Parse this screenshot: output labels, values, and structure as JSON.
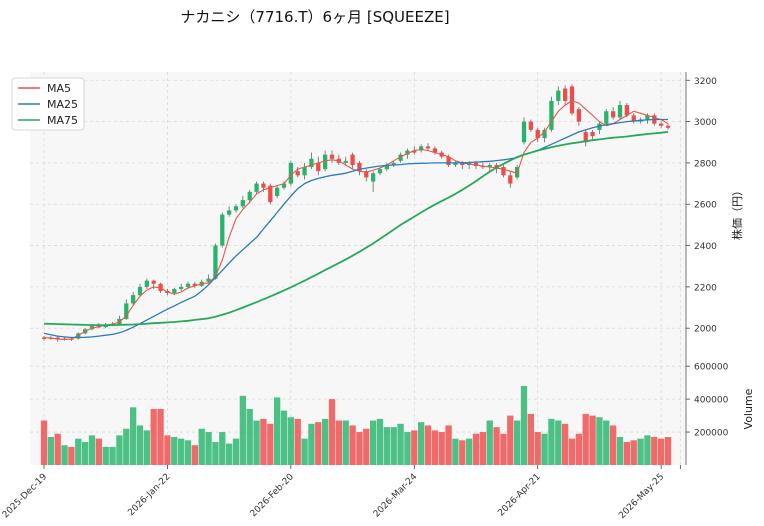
{
  "chart_data": {
    "type": "candlestick",
    "title": "ナカニシ（7716.T）6ヶ月 [SQUEEZE]",
    "price_axis": {
      "label": "株価（円）",
      "ticks": [
        2000,
        2200,
        2400,
        2600,
        2800,
        3000,
        3200
      ],
      "ylim": [
        1880,
        3240
      ]
    },
    "volume_axis": {
      "label": "Volume",
      "ticks": [
        200000,
        400000,
        600000
      ],
      "tick_labels": [
        "200000",
        "400000",
        "600000"
      ],
      "ylim": [
        0,
        680000
      ]
    },
    "x_ticks": [
      "2025-Dec-19",
      "2026-Jan-22",
      "2026-Feb-20",
      "2026-Mar-24",
      "2026-Apr-21",
      "2026-May-25"
    ],
    "grid": true,
    "legend": {
      "position": "top-left",
      "entries": [
        "MA5",
        "MA25",
        "MA75"
      ]
    },
    "colors": {
      "up": "#26b36b",
      "down": "#ef4b4b",
      "ma5": "#e8574a",
      "ma25": "#2b7bbd",
      "ma75": "#27a85a"
    },
    "series": [
      {
        "name": "MA5",
        "values": [
          1955,
          1952,
          1948,
          1946,
          1948,
          1965,
          1985,
          2000,
          2008,
          2015,
          2020,
          2030,
          2060,
          2110,
          2155,
          2185,
          2200,
          2195,
          2175,
          2165,
          2175,
          2195,
          2205,
          2215,
          2220,
          2250,
          2330,
          2440,
          2530,
          2575,
          2610,
          2650,
          2670,
          2680,
          2690,
          2700,
          2740,
          2770,
          2780,
          2790,
          2800,
          2810,
          2815,
          2810,
          2790,
          2770,
          2760,
          2755,
          2765,
          2775,
          2790,
          2810,
          2830,
          2845,
          2860,
          2865,
          2860,
          2850,
          2840,
          2830,
          2810,
          2800,
          2795,
          2790,
          2785,
          2780,
          2775,
          2770,
          2760,
          2750,
          2850,
          2900,
          2920,
          2950,
          3000,
          3050,
          3080,
          3100,
          3090,
          3060,
          3030,
          3000,
          2980,
          2990,
          3010,
          3030,
          3050,
          3040,
          3030,
          3020,
          3010,
          2990
        ]
      },
      {
        "name": "MA25",
        "values": [
          1975,
          1968,
          1962,
          1958,
          1955,
          1955,
          1956,
          1958,
          1962,
          1966,
          1970,
          1978,
          1990,
          2005,
          2022,
          2040,
          2057,
          2075,
          2092,
          2108,
          2125,
          2140,
          2155,
          2180,
          2210,
          2245,
          2280,
          2315,
          2350,
          2380,
          2410,
          2440,
          2480,
          2520,
          2560,
          2600,
          2640,
          2675,
          2700,
          2715,
          2725,
          2733,
          2740,
          2745,
          2750,
          2760,
          2770,
          2775,
          2780,
          2785,
          2788,
          2790,
          2792,
          2795,
          2797,
          2798,
          2799,
          2800,
          2800,
          2800,
          2800,
          2801,
          2802,
          2804,
          2806,
          2808,
          2811,
          2815,
          2820,
          2825,
          2840,
          2850,
          2860,
          2875,
          2890,
          2905,
          2920,
          2935,
          2950,
          2960,
          2970,
          2978,
          2985,
          2990,
          2995,
          3000,
          3003,
          3006,
          3008,
          3010,
          3010,
          3010
        ]
      },
      {
        "name": "MA75",
        "values": [
          2022,
          2021,
          2020,
          2019,
          2018,
          2017,
          2016,
          2015,
          2015,
          2015,
          2015,
          2016,
          2017,
          2018,
          2020,
          2022,
          2024,
          2026,
          2028,
          2030,
          2033,
          2036,
          2040,
          2044,
          2048,
          2055,
          2065,
          2075,
          2087,
          2100,
          2113,
          2126,
          2140,
          2154,
          2168,
          2183,
          2198,
          2214,
          2230,
          2247,
          2264,
          2281,
          2298,
          2315,
          2333,
          2351,
          2370,
          2390,
          2410,
          2432,
          2455,
          2477,
          2500,
          2520,
          2540,
          2560,
          2580,
          2598,
          2615,
          2632,
          2650,
          2670,
          2690,
          2712,
          2735,
          2757,
          2778,
          2795,
          2812,
          2828,
          2840,
          2850,
          2860,
          2868,
          2876,
          2883,
          2889,
          2895,
          2900,
          2905,
          2910,
          2914,
          2918,
          2922,
          2925,
          2928,
          2932,
          2936,
          2940,
          2943,
          2946,
          2950
        ]
      }
    ],
    "candles": [
      {
        "o": 1955,
        "c": 1948,
        "h": 1962,
        "l": 1940
      },
      {
        "o": 1948,
        "c": 1955,
        "h": 1962,
        "l": 1942
      },
      {
        "o": 1955,
        "c": 1945,
        "h": 1960,
        "l": 1935
      },
      {
        "o": 1945,
        "c": 1950,
        "h": 1958,
        "l": 1940
      },
      {
        "o": 1950,
        "c": 1945,
        "h": 1956,
        "l": 1938
      },
      {
        "o": 1950,
        "c": 1975,
        "h": 1980,
        "l": 1945
      },
      {
        "o": 1975,
        "c": 1995,
        "h": 2000,
        "l": 1970
      },
      {
        "o": 1995,
        "c": 2010,
        "h": 2020,
        "l": 1990
      },
      {
        "o": 2010,
        "c": 2005,
        "h": 2025,
        "l": 2000
      },
      {
        "o": 2005,
        "c": 2015,
        "h": 2025,
        "l": 2000
      },
      {
        "o": 2015,
        "c": 2020,
        "h": 2030,
        "l": 2010
      },
      {
        "o": 2020,
        "c": 2045,
        "h": 2060,
        "l": 2015
      },
      {
        "o": 2045,
        "c": 2120,
        "h": 2140,
        "l": 2040
      },
      {
        "o": 2120,
        "c": 2160,
        "h": 2175,
        "l": 2110
      },
      {
        "o": 2160,
        "c": 2200,
        "h": 2215,
        "l": 2150
      },
      {
        "o": 2200,
        "c": 2230,
        "h": 2240,
        "l": 2190
      },
      {
        "o": 2230,
        "c": 2215,
        "h": 2235,
        "l": 2190
      },
      {
        "o": 2215,
        "c": 2180,
        "h": 2220,
        "l": 2170
      },
      {
        "o": 2180,
        "c": 2170,
        "h": 2190,
        "l": 2160
      },
      {
        "o": 2170,
        "c": 2190,
        "h": 2195,
        "l": 2160
      },
      {
        "o": 2190,
        "c": 2200,
        "h": 2215,
        "l": 2180
      },
      {
        "o": 2200,
        "c": 2215,
        "h": 2225,
        "l": 2190
      },
      {
        "o": 2215,
        "c": 2205,
        "h": 2225,
        "l": 2195
      },
      {
        "o": 2205,
        "c": 2225,
        "h": 2235,
        "l": 2200
      },
      {
        "o": 2225,
        "c": 2240,
        "h": 2260,
        "l": 2215
      },
      {
        "o": 2240,
        "c": 2400,
        "h": 2410,
        "l": 2235
      },
      {
        "o": 2400,
        "c": 2550,
        "h": 2560,
        "l": 2390
      },
      {
        "o": 2550,
        "c": 2570,
        "h": 2590,
        "l": 2540
      },
      {
        "o": 2570,
        "c": 2590,
        "h": 2600,
        "l": 2560
      },
      {
        "o": 2590,
        "c": 2620,
        "h": 2640,
        "l": 2580
      },
      {
        "o": 2620,
        "c": 2660,
        "h": 2670,
        "l": 2610
      },
      {
        "o": 2660,
        "c": 2700,
        "h": 2710,
        "l": 2650
      },
      {
        "o": 2700,
        "c": 2680,
        "h": 2710,
        "l": 2660
      },
      {
        "o": 2690,
        "c": 2610,
        "h": 2700,
        "l": 2600
      },
      {
        "o": 2640,
        "c": 2680,
        "h": 2690,
        "l": 2630
      },
      {
        "o": 2680,
        "c": 2700,
        "h": 2710,
        "l": 2670
      },
      {
        "o": 2700,
        "c": 2800,
        "h": 2810,
        "l": 2690
      },
      {
        "o": 2760,
        "c": 2740,
        "h": 2780,
        "l": 2730
      },
      {
        "o": 2740,
        "c": 2780,
        "h": 2800,
        "l": 2720
      },
      {
        "o": 2780,
        "c": 2820,
        "h": 2850,
        "l": 2770
      },
      {
        "o": 2800,
        "c": 2760,
        "h": 2830,
        "l": 2740
      },
      {
        "o": 2770,
        "c": 2840,
        "h": 2860,
        "l": 2760
      },
      {
        "o": 2840,
        "c": 2820,
        "h": 2860,
        "l": 2800
      },
      {
        "o": 2820,
        "c": 2800,
        "h": 2840,
        "l": 2790
      },
      {
        "o": 2800,
        "c": 2810,
        "h": 2830,
        "l": 2790
      },
      {
        "o": 2840,
        "c": 2790,
        "h": 2850,
        "l": 2770
      },
      {
        "o": 2800,
        "c": 2760,
        "h": 2810,
        "l": 2740
      },
      {
        "o": 2760,
        "c": 2730,
        "h": 2770,
        "l": 2710
      },
      {
        "o": 2710,
        "c": 2750,
        "h": 2760,
        "l": 2660
      },
      {
        "o": 2750,
        "c": 2770,
        "h": 2780,
        "l": 2740
      },
      {
        "o": 2770,
        "c": 2790,
        "h": 2800,
        "l": 2760
      },
      {
        "o": 2790,
        "c": 2800,
        "h": 2810,
        "l": 2780
      },
      {
        "o": 2810,
        "c": 2840,
        "h": 2850,
        "l": 2800
      },
      {
        "o": 2840,
        "c": 2860,
        "h": 2870,
        "l": 2820
      },
      {
        "o": 2860,
        "c": 2850,
        "h": 2880,
        "l": 2840
      },
      {
        "o": 2860,
        "c": 2880,
        "h": 2890,
        "l": 2850
      },
      {
        "o": 2880,
        "c": 2870,
        "h": 2895,
        "l": 2860
      },
      {
        "o": 2870,
        "c": 2850,
        "h": 2880,
        "l": 2840
      },
      {
        "o": 2850,
        "c": 2830,
        "h": 2860,
        "l": 2820
      },
      {
        "o": 2830,
        "c": 2790,
        "h": 2840,
        "l": 2780
      },
      {
        "o": 2790,
        "c": 2800,
        "h": 2810,
        "l": 2780
      },
      {
        "o": 2800,
        "c": 2790,
        "h": 2810,
        "l": 2770
      },
      {
        "o": 2790,
        "c": 2800,
        "h": 2810,
        "l": 2770
      },
      {
        "o": 2800,
        "c": 2785,
        "h": 2810,
        "l": 2770
      },
      {
        "o": 2785,
        "c": 2780,
        "h": 2800,
        "l": 2770
      },
      {
        "o": 2780,
        "c": 2790,
        "h": 2800,
        "l": 2760
      },
      {
        "o": 2790,
        "c": 2770,
        "h": 2800,
        "l": 2750
      },
      {
        "o": 2780,
        "c": 2740,
        "h": 2790,
        "l": 2730
      },
      {
        "o": 2740,
        "c": 2700,
        "h": 2760,
        "l": 2680
      },
      {
        "o": 2730,
        "c": 2780,
        "h": 2790,
        "l": 2720
      },
      {
        "o": 2900,
        "c": 3000,
        "h": 3020,
        "l": 2890
      },
      {
        "o": 3000,
        "c": 2960,
        "h": 3010,
        "l": 2950
      },
      {
        "o": 2960,
        "c": 2920,
        "h": 2970,
        "l": 2900
      },
      {
        "o": 2920,
        "c": 2960,
        "h": 2970,
        "l": 2900
      },
      {
        "o": 2960,
        "c": 3100,
        "h": 3120,
        "l": 2950
      },
      {
        "o": 3100,
        "c": 3150,
        "h": 3170,
        "l": 3080
      },
      {
        "o": 3160,
        "c": 3100,
        "h": 3175,
        "l": 3080
      },
      {
        "o": 3170,
        "c": 3040,
        "h": 3180,
        "l": 3030
      },
      {
        "o": 3060,
        "c": 3000,
        "h": 3070,
        "l": 2980
      },
      {
        "o": 2950,
        "c": 2900,
        "h": 2960,
        "l": 2880
      },
      {
        "o": 2950,
        "c": 2930,
        "h": 2960,
        "l": 2910
      },
      {
        "o": 2960,
        "c": 2990,
        "h": 3000,
        "l": 2940
      },
      {
        "o": 2990,
        "c": 3050,
        "h": 3060,
        "l": 2980
      },
      {
        "o": 3050,
        "c": 3020,
        "h": 3070,
        "l": 3010
      },
      {
        "o": 3020,
        "c": 3080,
        "h": 3100,
        "l": 3010
      },
      {
        "o": 3080,
        "c": 3030,
        "h": 3090,
        "l": 3020
      },
      {
        "o": 3030,
        "c": 3000,
        "h": 3040,
        "l": 2990
      },
      {
        "o": 3000,
        "c": 3010,
        "h": 3020,
        "l": 2990
      },
      {
        "o": 3010,
        "c": 3030,
        "h": 3040,
        "l": 2990
      },
      {
        "o": 3030,
        "c": 2990,
        "h": 3040,
        "l": 2980
      },
      {
        "o": 2990,
        "c": 2980,
        "h": 3000,
        "l": 2970
      },
      {
        "o": 2980,
        "c": 2970,
        "h": 2990,
        "l": 2960
      }
    ],
    "volume": [
      270000,
      170000,
      190000,
      120000,
      110000,
      160000,
      140000,
      180000,
      160000,
      110000,
      110000,
      180000,
      220000,
      350000,
      240000,
      210000,
      340000,
      340000,
      180000,
      170000,
      160000,
      150000,
      120000,
      220000,
      200000,
      140000,
      200000,
      130000,
      160000,
      420000,
      340000,
      270000,
      280000,
      250000,
      410000,
      330000,
      290000,
      280000,
      160000,
      250000,
      260000,
      280000,
      400000,
      270000,
      270000,
      240000,
      200000,
      220000,
      270000,
      280000,
      230000,
      230000,
      250000,
      200000,
      210000,
      260000,
      240000,
      210000,
      200000,
      240000,
      160000,
      150000,
      160000,
      190000,
      200000,
      270000,
      230000,
      190000,
      300000,
      270000,
      480000,
      310000,
      200000,
      190000,
      280000,
      270000,
      250000,
      160000,
      190000,
      310000,
      300000,
      290000,
      270000,
      240000,
      170000,
      140000,
      150000,
      160000,
      180000,
      170000,
      160000,
      170000
    ]
  },
  "legend_labels": [
    "MA5",
    "MA25",
    "MA75"
  ]
}
